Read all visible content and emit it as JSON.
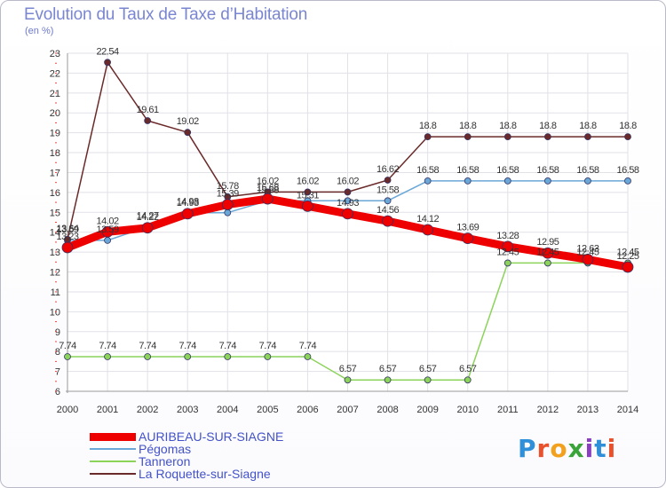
{
  "title": "Evolution du Taux de Taxe d’Habitation",
  "unit_label": "(en %)",
  "logo": {
    "letters": [
      "P",
      "r",
      "o",
      "x",
      "i",
      "t",
      "i"
    ],
    "colors": [
      "#2f8fd8",
      "#e8512c",
      "#f2a11f",
      "#3aa43a",
      "#8a3fc1",
      "#2f8fd8",
      "#e8512c"
    ]
  },
  "chart_data": {
    "type": "line",
    "x": [
      "2000",
      "2001",
      "2002",
      "2003",
      "2004",
      "2005",
      "2006",
      "2007",
      "2008",
      "2009",
      "2010",
      "2011",
      "2012",
      "2013",
      "2014"
    ],
    "y_ticks": [
      "6",
      "7",
      "8",
      "9",
      "10",
      "11",
      "12",
      "13",
      "14",
      "15",
      "16",
      "17",
      "18",
      "19",
      "20",
      "21",
      "22",
      "23"
    ],
    "ylim": [
      6,
      23
    ],
    "grid": true,
    "legend_position": "bottom-left",
    "series": [
      {
        "name": "AURIBEAU-SUR-SIAGNE",
        "color": "#ee0000",
        "values": [
          13.23,
          14.02,
          14.22,
          14.93,
          15.39,
          15.68,
          15.31,
          14.93,
          14.56,
          14.12,
          13.69,
          13.28,
          12.95,
          12.63,
          12.25
        ],
        "labels": [
          "13.23",
          "14.02",
          "14.22",
          "14.93",
          "15.39",
          "15.68",
          "15.31",
          "14.93",
          "14.56",
          "14.12",
          "13.69",
          "13.28",
          "12.95",
          "12.63",
          "12.25"
        ]
      },
      {
        "name": "Pégomas",
        "color": "#6aa7d6",
        "values": [
          13.59,
          13.59,
          14.27,
          14.98,
          14.98,
          15.58,
          15.58,
          15.58,
          15.58,
          16.58,
          16.58,
          16.58,
          16.58,
          16.58,
          16.58
        ],
        "labels": [
          "13.59",
          "13.59",
          "14.27",
          "14.98",
          "",
          "15.58",
          "",
          "",
          "15.58",
          "16.58",
          "16.58",
          "16.58",
          "16.58",
          "16.58",
          "16.58"
        ]
      },
      {
        "name": "Tanneron",
        "color": "#8cd35a",
        "values": [
          7.74,
          7.74,
          7.74,
          7.74,
          7.74,
          7.74,
          7.74,
          6.57,
          6.57,
          6.57,
          6.57,
          12.45,
          12.45,
          12.45,
          12.45
        ],
        "labels": [
          "7.74",
          "7.74",
          "7.74",
          "7.74",
          "7.74",
          "7.74",
          "7.74",
          "6.57",
          "6.57",
          "6.57",
          "6.57",
          "12.45",
          "12.45",
          "12.45",
          "12.45"
        ]
      },
      {
        "name": "La Roquette-sur-Siagne",
        "color": "#6b2a2a",
        "values": [
          13.64,
          22.54,
          19.61,
          19.02,
          15.78,
          16.02,
          16.02,
          16.02,
          16.62,
          18.8,
          18.8,
          18.8,
          18.8,
          18.8,
          18.8
        ],
        "labels": [
          "13.64",
          "22.54",
          "19.61",
          "19.02",
          "15.78",
          "16.02",
          "16.02",
          "16.02",
          "16.62",
          "18.8",
          "18.8",
          "18.8",
          "18.8",
          "18.8",
          "18.8"
        ]
      }
    ]
  }
}
